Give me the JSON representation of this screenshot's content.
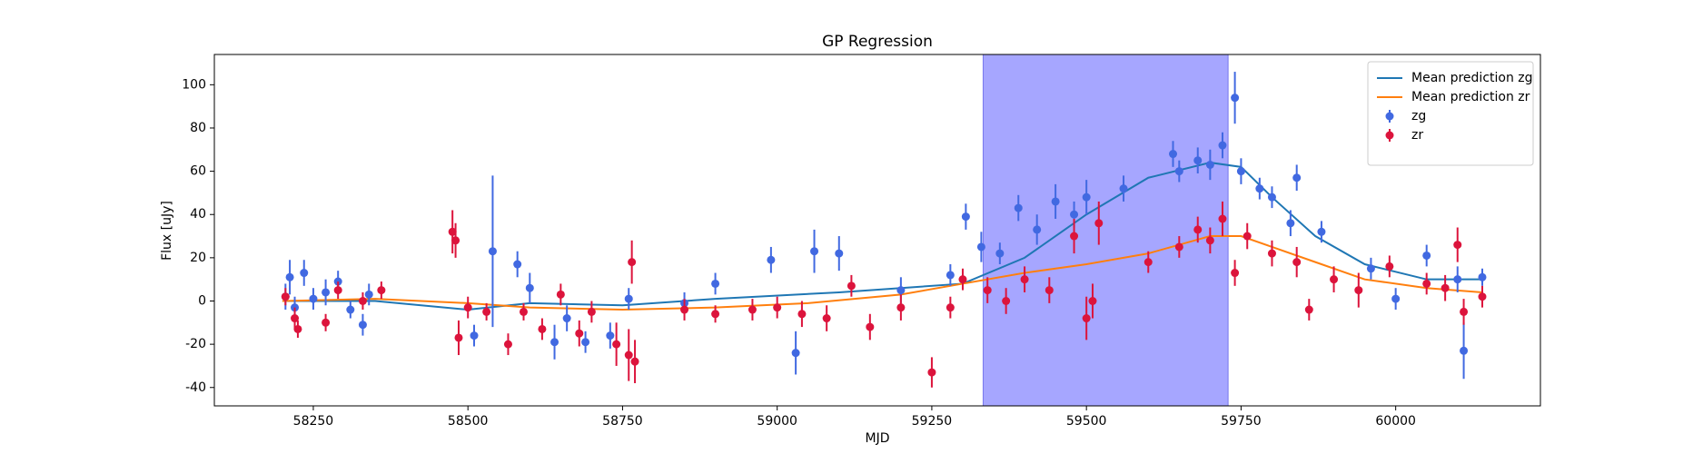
{
  "chart_data": {
    "type": "errorbar",
    "title": "GP Regression",
    "x_label": "MJD",
    "y_label": "Flux [uJy]",
    "xlim": [
      58090,
      60234
    ],
    "ylim": [
      -48.5,
      114
    ],
    "xticks": [
      58250,
      58500,
      58750,
      59000,
      59250,
      59500,
      59750,
      60000
    ],
    "yticks": [
      -40,
      -20,
      0,
      20,
      40,
      60,
      80,
      100
    ],
    "span": {
      "x": [
        59333,
        59729
      ],
      "color": "#a6a6ff"
    },
    "legend": "upper right",
    "series": [
      {
        "name": "Mean prediction zg",
        "type": "line",
        "color": "#1f77b4",
        "x": [
          58200,
          58350,
          58500,
          58600,
          58750,
          58900,
          59100,
          59300,
          59400,
          59500,
          59600,
          59700,
          59750,
          59800,
          59870,
          59950,
          60050,
          60140
        ],
        "values": [
          0,
          0,
          -4,
          -1,
          -2,
          1,
          4,
          8,
          20,
          40,
          57,
          64,
          62,
          48,
          30,
          17,
          10,
          10
        ]
      },
      {
        "name": "Mean prediction zr",
        "type": "line",
        "color": "#ff7f0e",
        "x": [
          58200,
          58350,
          58500,
          58600,
          58750,
          58900,
          59050,
          59200,
          59300,
          59400,
          59500,
          59600,
          59700,
          59750,
          59800,
          59870,
          59950,
          60050,
          60140
        ],
        "values": [
          0,
          1,
          -1,
          -3,
          -4,
          -3,
          -1,
          3,
          8,
          13,
          17,
          22,
          30,
          30,
          25,
          18,
          10,
          6,
          4
        ]
      },
      {
        "name": "zg",
        "type": "errorbar",
        "color": "#4169e1",
        "x": [
          58205,
          58212,
          58220,
          58235,
          58250,
          58270,
          58290,
          58310,
          58330,
          58340,
          58510,
          58540,
          58580,
          58600,
          58640,
          58660,
          58690,
          58730,
          58760,
          58850,
          58900,
          58990,
          59030,
          59060,
          59100,
          59200,
          59280,
          59305,
          59330,
          59360,
          59390,
          59420,
          59450,
          59480,
          59500,
          59560,
          59640,
          59650,
          59680,
          59700,
          59720,
          59740,
          59750,
          59780,
          59800,
          59830,
          59840,
          59880,
          59960,
          60000,
          60050,
          60100,
          60110,
          60140
        ],
        "values": [
          2,
          11,
          -3,
          13,
          1,
          4,
          9,
          -4,
          -11,
          3,
          -16,
          23,
          17,
          6,
          -19,
          -8,
          -19,
          -16,
          1,
          -1,
          8,
          19,
          -24,
          23,
          22,
          5,
          12,
          39,
          25,
          22,
          43,
          33,
          46,
          40,
          48,
          52,
          68,
          60,
          65,
          63,
          72,
          94,
          60,
          52,
          48,
          36,
          57,
          32,
          15,
          1,
          21,
          10,
          -23,
          11
        ],
        "errors": [
          6,
          8,
          5,
          6,
          5,
          6,
          5,
          4,
          5,
          5,
          5,
          35,
          6,
          7,
          8,
          6,
          5,
          6,
          5,
          5,
          5,
          6,
          10,
          10,
          8,
          6,
          5,
          6,
          7,
          5,
          6,
          7,
          8,
          6,
          8,
          6,
          6,
          5,
          6,
          7,
          6,
          12,
          6,
          5,
          5,
          6,
          6,
          5,
          5,
          5,
          5,
          6,
          13,
          4
        ]
      },
      {
        "name": "zr",
        "type": "errorbar",
        "color": "#dc143c",
        "x": [
          58205,
          58220,
          58225,
          58270,
          58290,
          58330,
          58360,
          58475,
          58480,
          58485,
          58500,
          58530,
          58565,
          58590,
          58620,
          58650,
          58680,
          58700,
          58740,
          58760,
          58765,
          58770,
          58850,
          58900,
          58960,
          59000,
          59040,
          59080,
          59120,
          59150,
          59200,
          59250,
          59280,
          59300,
          59340,
          59370,
          59400,
          59440,
          59480,
          59500,
          59510,
          59520,
          59600,
          59650,
          59680,
          59700,
          59720,
          59740,
          59760,
          59800,
          59840,
          59860,
          59900,
          59940,
          59990,
          60050,
          60080,
          60100,
          60110,
          60140
        ],
        "values": [
          2,
          -8,
          -13,
          -10,
          5,
          0,
          5,
          32,
          28,
          -17,
          -3,
          -5,
          -20,
          -5,
          -13,
          3,
          -15,
          -5,
          -20,
          -25,
          18,
          -28,
          -4,
          -6,
          -4,
          -3,
          -6,
          -8,
          7,
          -12,
          -3,
          -33,
          -3,
          10,
          5,
          0,
          10,
          5,
          30,
          -8,
          0,
          36,
          18,
          25,
          33,
          28,
          38,
          13,
          30,
          22,
          18,
          -4,
          10,
          5,
          16,
          8,
          6,
          26,
          -5,
          2
        ],
        "errors": [
          4,
          5,
          4,
          4,
          4,
          4,
          4,
          10,
          8,
          8,
          5,
          4,
          5,
          4,
          5,
          5,
          6,
          5,
          10,
          12,
          10,
          10,
          5,
          4,
          5,
          5,
          6,
          6,
          5,
          6,
          6,
          7,
          5,
          5,
          6,
          6,
          6,
          6,
          8,
          10,
          8,
          10,
          5,
          5,
          6,
          6,
          8,
          6,
          6,
          6,
          7,
          5,
          6,
          8,
          5,
          5,
          6,
          8,
          6,
          5
        ]
      }
    ]
  }
}
